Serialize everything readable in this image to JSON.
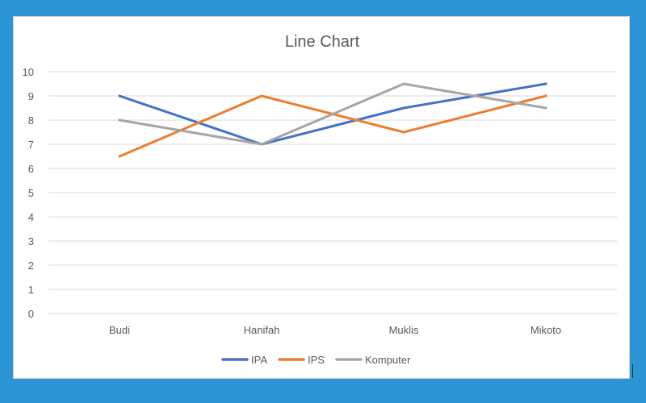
{
  "chart_data": {
    "type": "line",
    "title": "Line Chart",
    "categories": [
      "Budi",
      "Hanifah",
      "Muklis",
      "Mikoto"
    ],
    "ylim": [
      0,
      10
    ],
    "yticks": [
      0,
      1,
      2,
      3,
      4,
      5,
      6,
      7,
      8,
      9,
      10
    ],
    "grid": true,
    "legend_position": "bottom",
    "series": [
      {
        "name": "IPA",
        "color": "#4472c4",
        "values": [
          9,
          7,
          8.5,
          9.5
        ]
      },
      {
        "name": "IPS",
        "color": "#ed7d31",
        "values": [
          6.5,
          9,
          7.5,
          9
        ]
      },
      {
        "name": "Komputer",
        "color": "#a5a5a5",
        "values": [
          8,
          7,
          9.5,
          8.5
        ]
      }
    ]
  }
}
